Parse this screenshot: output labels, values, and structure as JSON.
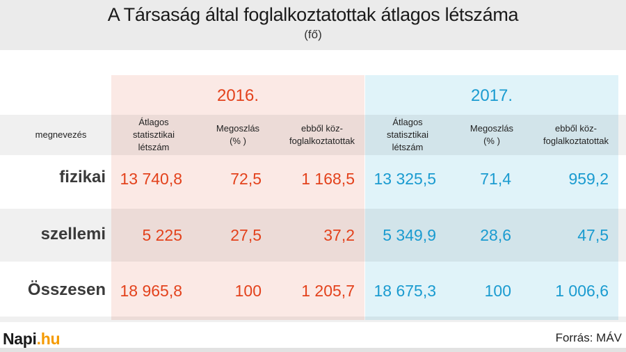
{
  "header": {
    "title": "A Társaság által foglalkoztatottak átlagos létszáma",
    "subtitle": "(fő)"
  },
  "years": {
    "y2016": "2016.",
    "y2017": "2017."
  },
  "columns": {
    "name": "megnevezés",
    "avg": "Átlagos\nstatisztikai\nlétszám",
    "share": "Megoszlás\n(% )",
    "public_work": "ebből köz-\nfoglalkoztatottak"
  },
  "rows": [
    {
      "label": "fizikai",
      "v2016": [
        "13 740,8",
        "72,5",
        "1 168,5"
      ],
      "v2017": [
        "13 325,5",
        "71,4",
        "959,2"
      ]
    },
    {
      "label": "szellemi",
      "v2016": [
        "5 225",
        "27,5",
        "37,2"
      ],
      "v2017": [
        "5 349,9",
        "28,6",
        "47,5"
      ]
    },
    {
      "label": "Összesen",
      "v2016": [
        "18 965,8",
        "100",
        "1 205,7"
      ],
      "v2017": [
        "18 675,3",
        "100",
        "1 006,6"
      ]
    }
  ],
  "logo": {
    "name": "Napi",
    "dot": ".",
    "tld": "hu"
  },
  "source": "Forrás: MÁV",
  "colors": {
    "y2016": "#e3421c",
    "y2017": "#1a9bd0",
    "panel2016": "#fbe9e5",
    "panel2017": "#e0f3f9",
    "logo_accent": "#f59a00"
  }
}
